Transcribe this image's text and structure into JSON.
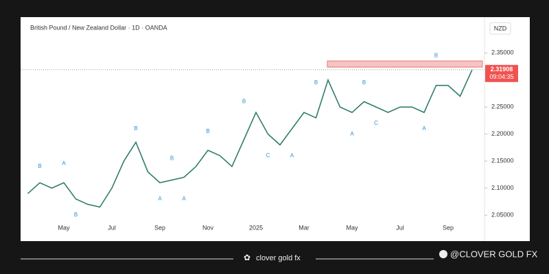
{
  "chart_data": {
    "type": "line",
    "title": "British Pound / New Zealand Dollar · 1D · OANDA",
    "currency": "NZD",
    "categories": [
      null,
      null,
      null,
      "May",
      null,
      null,
      null,
      "Jul",
      null,
      null,
      null,
      "Sep",
      null,
      null,
      null,
      "Nov",
      null,
      null,
      null,
      "2025",
      null,
      null,
      null,
      "Mar",
      null,
      null,
      null,
      "May",
      null,
      null,
      null,
      "Jul",
      null,
      null,
      null,
      "Sep",
      null,
      null
    ],
    "values": [
      2.09,
      2.11,
      2.1,
      2.11,
      2.08,
      2.07,
      2.065,
      2.1,
      2.15,
      2.185,
      2.13,
      2.11,
      2.115,
      2.12,
      2.14,
      2.17,
      2.16,
      2.14,
      2.19,
      2.24,
      2.2,
      2.18,
      2.21,
      2.24,
      2.23,
      2.3,
      2.25,
      2.24,
      2.26,
      2.25,
      2.24,
      2.25,
      2.25,
      2.24,
      2.29,
      2.29,
      2.27,
      2.319
    ],
    "color": "#2e7d6b",
    "ylim": [
      2.04,
      2.41
    ],
    "yticks": [
      {
        "value": 2.05,
        "label": "2.05000"
      },
      {
        "value": 2.1,
        "label": "2.10000"
      },
      {
        "value": 2.15,
        "label": "2.15000"
      },
      {
        "value": 2.2,
        "label": "2.20000"
      },
      {
        "value": 2.25,
        "label": "2.25000"
      },
      {
        "value": 2.3,
        "label": "2.30000"
      },
      {
        "value": 2.35,
        "label": "2.35000"
      }
    ],
    "last_price": 2.31908,
    "countdown": "09:04:35",
    "last_price_color": "#ef5350",
    "annotation_color": "#2a8fd6",
    "annotations": [
      {
        "text": "B",
        "index": 1,
        "value": 2.14
      },
      {
        "text": "A",
        "index": 3,
        "value": 2.145
      },
      {
        "text": "B",
        "index": 4,
        "value": 2.05
      },
      {
        "text": "B",
        "index": 9,
        "value": 2.21
      },
      {
        "text": "A",
        "index": 11,
        "value": 2.08
      },
      {
        "text": "B",
        "index": 12,
        "value": 2.155
      },
      {
        "text": "A",
        "index": 13,
        "value": 2.08
      },
      {
        "text": "B",
        "index": 15,
        "value": 2.205
      },
      {
        "text": "B",
        "index": 18,
        "value": 2.26
      },
      {
        "text": "C",
        "index": 20,
        "value": 2.16
      },
      {
        "text": "A",
        "index": 22,
        "value": 2.16
      },
      {
        "text": "B",
        "index": 24,
        "value": 2.295
      },
      {
        "text": "A",
        "index": 27,
        "value": 2.2
      },
      {
        "text": "B",
        "index": 28,
        "value": 2.295
      },
      {
        "text": "C",
        "index": 29,
        "value": 2.22
      },
      {
        "text": "A",
        "index": 33,
        "value": 2.21
      },
      {
        "text": "B",
        "index": 34,
        "value": 2.345
      }
    ]
  },
  "footer": {
    "brand": "clover gold fx",
    "handle": "@CLOVER GOLD FX"
  }
}
